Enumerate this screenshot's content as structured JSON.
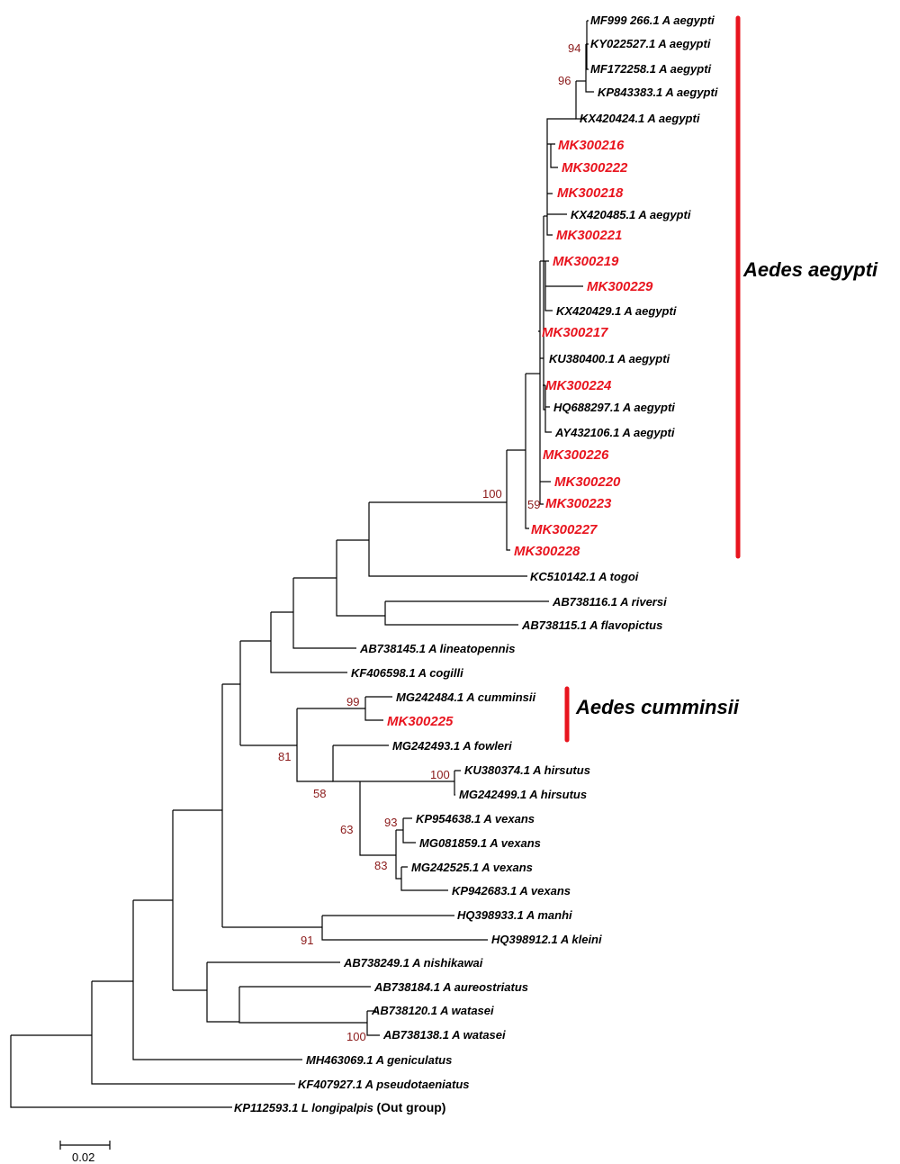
{
  "colors": {
    "branch": "#000000",
    "highlight": "#e8141e",
    "bootstrap": "#8b1a1a"
  },
  "tips": [
    {
      "label": "MF999 266.1 A aegypti",
      "highlight": false
    },
    {
      "label": "KY022527.1 A aegypti",
      "highlight": false
    },
    {
      "label": "MF172258.1 A aegypti",
      "highlight": false
    },
    {
      "label": "KP843383.1 A aegypti",
      "highlight": false
    },
    {
      "label": "KX420424.1 A aegypti",
      "highlight": false
    },
    {
      "label": "MK300216",
      "highlight": true
    },
    {
      "label": "MK300222",
      "highlight": true
    },
    {
      "label": "MK300218",
      "highlight": true
    },
    {
      "label": "KX420485.1 A aegypti",
      "highlight": false
    },
    {
      "label": "MK300221",
      "highlight": true
    },
    {
      "label": "MK300219",
      "highlight": true
    },
    {
      "label": "MK300229",
      "highlight": true
    },
    {
      "label": "KX420429.1 A aegypti",
      "highlight": false
    },
    {
      "label": "MK300217",
      "highlight": true
    },
    {
      "label": "KU380400.1 A aegypti",
      "highlight": false
    },
    {
      "label": "MK300224",
      "highlight": true
    },
    {
      "label": "HQ688297.1 A aegypti",
      "highlight": false
    },
    {
      "label": "AY432106.1 A aegypti",
      "highlight": false
    },
    {
      "label": "MK300226",
      "highlight": true
    },
    {
      "label": "MK300220",
      "highlight": true
    },
    {
      "label": "MK300223",
      "highlight": true
    },
    {
      "label": "MK300227",
      "highlight": true
    },
    {
      "label": "MK300228",
      "highlight": true
    },
    {
      "label": "KC510142.1 A togoi",
      "highlight": false
    },
    {
      "label": "AB738116.1 A riversi",
      "highlight": false
    },
    {
      "label": "AB738115.1 A flavopictus",
      "highlight": false
    },
    {
      "label": "AB738145.1 A lineatopennis",
      "highlight": false
    },
    {
      "label": "KF406598.1 A cogilli",
      "highlight": false
    },
    {
      "label": "MG242484.1 A cumminsii",
      "highlight": false
    },
    {
      "label": "MK300225",
      "highlight": true
    },
    {
      "label": "MG242493.1 A fowleri",
      "highlight": false
    },
    {
      "label": "KU380374.1 A hirsutus",
      "highlight": false
    },
    {
      "label": "MG242499.1 A hirsutus",
      "highlight": false
    },
    {
      "label": "KP954638.1 A vexans",
      "highlight": false
    },
    {
      "label": "MG081859.1 A vexans",
      "highlight": false
    },
    {
      "label": "MG242525.1 A vexans",
      "highlight": false
    },
    {
      "label": "KP942683.1 A vexans",
      "highlight": false
    },
    {
      "label": "HQ398933.1 A manhi",
      "highlight": false
    },
    {
      "label": "HQ398912.1 A kleini",
      "highlight": false
    },
    {
      "label": "AB738249.1 A nishikawai",
      "highlight": false
    },
    {
      "label": "AB738184.1 A aureostriatus",
      "highlight": false
    },
    {
      "label": "AB738120.1 A watasei",
      "highlight": false
    },
    {
      "label": "AB738138.1 A watasei",
      "highlight": false
    },
    {
      "label": "MH463069.1 A geniculatus",
      "highlight": false
    },
    {
      "label": "KF407927.1 A pseudotaeniatus",
      "highlight": false
    },
    {
      "label": "KP112593.1 L longipalpis",
      "highlight": false,
      "suffix": "(Out group)"
    }
  ],
  "bootstrap": [
    "94",
    "96",
    "100",
    "59",
    "99",
    "81",
    "58",
    "100",
    "63",
    "93",
    "83",
    "91",
    "100"
  ],
  "clades": [
    {
      "label": "Aedes aegypti"
    },
    {
      "label": "Aedes cumminsii"
    }
  ],
  "scale_bar": {
    "label": "0.02"
  }
}
